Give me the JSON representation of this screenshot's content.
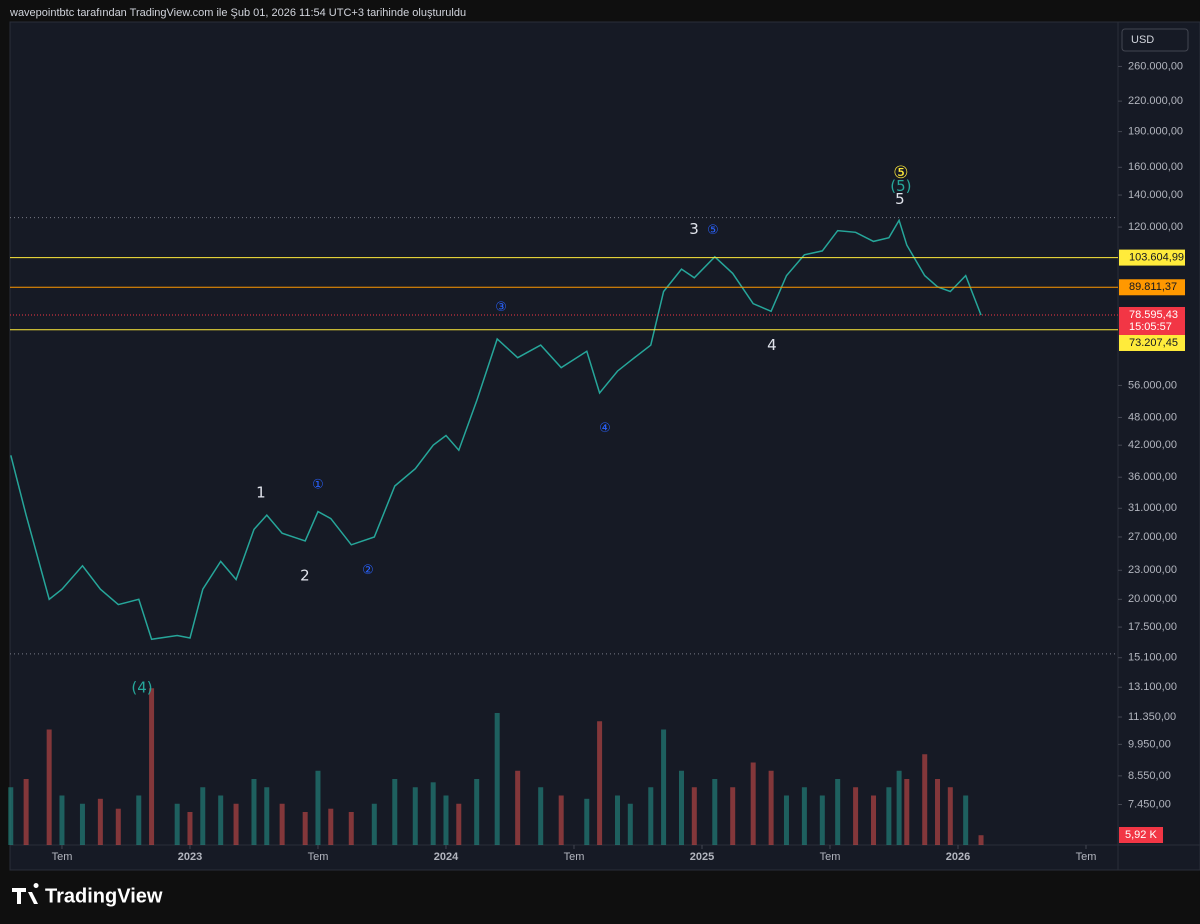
{
  "header": "wavepointbtc tarafından TradingView.com ile Şub 01, 2026 11:54 UTC+3 tarihinde oluşturuldu",
  "brand": "TradingView",
  "currency": "USD",
  "chart_data": {
    "type": "line",
    "log_scale": true,
    "grid": false,
    "x": [
      2022.3,
      2022.36,
      2022.45,
      2022.5,
      2022.58,
      2022.65,
      2022.72,
      2022.8,
      2022.85,
      2022.95,
      2023.0,
      2023.05,
      2023.12,
      2023.18,
      2023.25,
      2023.3,
      2023.36,
      2023.45,
      2023.5,
      2023.55,
      2023.63,
      2023.72,
      2023.8,
      2023.88,
      2023.95,
      2024.0,
      2024.05,
      2024.12,
      2024.2,
      2024.28,
      2024.37,
      2024.45,
      2024.55,
      2024.6,
      2024.67,
      2024.72,
      2024.8,
      2024.85,
      2024.92,
      2024.97,
      2025.05,
      2025.12,
      2025.2,
      2025.27,
      2025.33,
      2025.4,
      2025.47,
      2025.53,
      2025.6,
      2025.67,
      2025.73,
      2025.77,
      2025.8,
      2025.87,
      2025.92,
      2025.97,
      2026.03,
      2026.09
    ],
    "series": [
      {
        "color": "#26a69a",
        "values": [
          40000,
          30000,
          20000,
          21000,
          23500,
          21000,
          19500,
          20000,
          16500,
          16800,
          16600,
          21000,
          24000,
          22000,
          28000,
          30000,
          27500,
          26500,
          30500,
          29500,
          26000,
          27000,
          34500,
          37500,
          42000,
          44000,
          41000,
          52000,
          70000,
          64000,
          68000,
          61000,
          66000,
          54000,
          60000,
          63000,
          68000,
          88000,
          98000,
          94000,
          104000,
          96000,
          83000,
          80000,
          95000,
          105000,
          107000,
          118000,
          117000,
          112000,
          114000,
          124000,
          110000,
          95000,
          90000,
          88000,
          95000,
          78595.43
        ]
      }
    ],
    "volume": {
      "color_up": "#26a69a",
      "color_down": "#ef5350",
      "vlim": [
        0,
        100
      ],
      "values": [
        35,
        40,
        70,
        30,
        25,
        28,
        22,
        30,
        95,
        25,
        20,
        35,
        30,
        25,
        40,
        35,
        25,
        20,
        45,
        22,
        20,
        25,
        40,
        35,
        38,
        30,
        25,
        40,
        80,
        45,
        35,
        30,
        28,
        75,
        30,
        25,
        35,
        70,
        45,
        35,
        40,
        35,
        50,
        45,
        30,
        35,
        30,
        40,
        35,
        30,
        35,
        45,
        40,
        55,
        40,
        35,
        30,
        5.92
      ],
      "label": "5,92 K"
    },
    "xlim": [
      2022.297,
      2026.625
    ],
    "xticks": [
      {
        "value": 2022.5,
        "label": "Tem"
      },
      {
        "value": 2023,
        "label": "2023"
      },
      {
        "value": 2023.5,
        "label": "Tem"
      },
      {
        "value": 2024,
        "label": "2024"
      },
      {
        "value": 2024.5,
        "label": "Tem"
      },
      {
        "value": 2025,
        "label": "2025"
      },
      {
        "value": 2025.5,
        "label": "Tem"
      },
      {
        "value": 2026,
        "label": "2026"
      },
      {
        "value": 2026.5,
        "label": "Tem"
      }
    ],
    "ylim": [
      6130,
      322000
    ],
    "yticks": [
      {
        "value": 260000,
        "label": "260.000,00"
      },
      {
        "value": 220000,
        "label": "220.000,00"
      },
      {
        "value": 190000,
        "label": "190.000,00"
      },
      {
        "value": 160000,
        "label": "160.000,00"
      },
      {
        "value": 140000,
        "label": "140.000,00"
      },
      {
        "value": 120000,
        "label": "120.000,00"
      },
      {
        "value": 56000,
        "label": "56.000,00"
      },
      {
        "value": 48000,
        "label": "48.000,00"
      },
      {
        "value": 42000,
        "label": "42.000,00"
      },
      {
        "value": 36000,
        "label": "36.000,00"
      },
      {
        "value": 31000,
        "label": "31.000,00"
      },
      {
        "value": 27000,
        "label": "27.000,00"
      },
      {
        "value": 23000,
        "label": "23.000,00"
      },
      {
        "value": 20000,
        "label": "20.000,00"
      },
      {
        "value": 17500,
        "label": "17.500,00"
      },
      {
        "value": 15100,
        "label": "15.100,00"
      },
      {
        "value": 13100,
        "label": "13.100,00"
      },
      {
        "value": 11350,
        "label": "11.350,00"
      },
      {
        "value": 9950,
        "label": "9.950,00"
      },
      {
        "value": 8550,
        "label": "8.550,00"
      },
      {
        "value": 7450,
        "label": "7.450,00"
      }
    ],
    "levels": [
      {
        "value": 103604.99,
        "label": "103.604,99",
        "color": "#ffeb3b"
      },
      {
        "value": 89811.37,
        "label": "89.811,37",
        "color": "#ff9800"
      },
      {
        "value": 73207.45,
        "label": "73.207,45",
        "color": "#ffeb3b"
      }
    ],
    "dotted_levels": [
      125600,
      15380
    ],
    "last": {
      "value": 78595.43,
      "label": "78.595,43",
      "countdown": "15:05:57",
      "color": "#f23645"
    },
    "annotations": [
      {
        "text": "1",
        "x": 2023.277,
        "y": 33400,
        "style": "white"
      },
      {
        "text": "2",
        "x": 2023.449,
        "y": 22400,
        "style": "white"
      },
      {
        "text": "①",
        "x": 2023.5,
        "y": 34700,
        "style": "blue"
      },
      {
        "text": "②",
        "x": 2023.695,
        "y": 22950,
        "style": "blue"
      },
      {
        "text": "③",
        "x": 2024.215,
        "y": 81400,
        "style": "blue"
      },
      {
        "text": "④",
        "x": 2024.621,
        "y": 45500,
        "style": "blue"
      },
      {
        "text": "3",
        "x": 2024.969,
        "y": 118600,
        "style": "white"
      },
      {
        "text": "⑤",
        "x": 2025.043,
        "y": 118000,
        "style": "blue"
      },
      {
        "text": "4",
        "x": 2025.273,
        "y": 67800,
        "style": "white"
      },
      {
        "text": "5",
        "x": 2025.773,
        "y": 137000,
        "style": "white"
      },
      {
        "text": "(5)",
        "x": 2025.777,
        "y": 146000,
        "style": "teal"
      },
      {
        "text": "⑤",
        "x": 2025.777,
        "y": 155500,
        "style": "yellow"
      },
      {
        "text": "(4)",
        "x": 2022.8125,
        "y": 13050,
        "style": "teal"
      }
    ]
  }
}
